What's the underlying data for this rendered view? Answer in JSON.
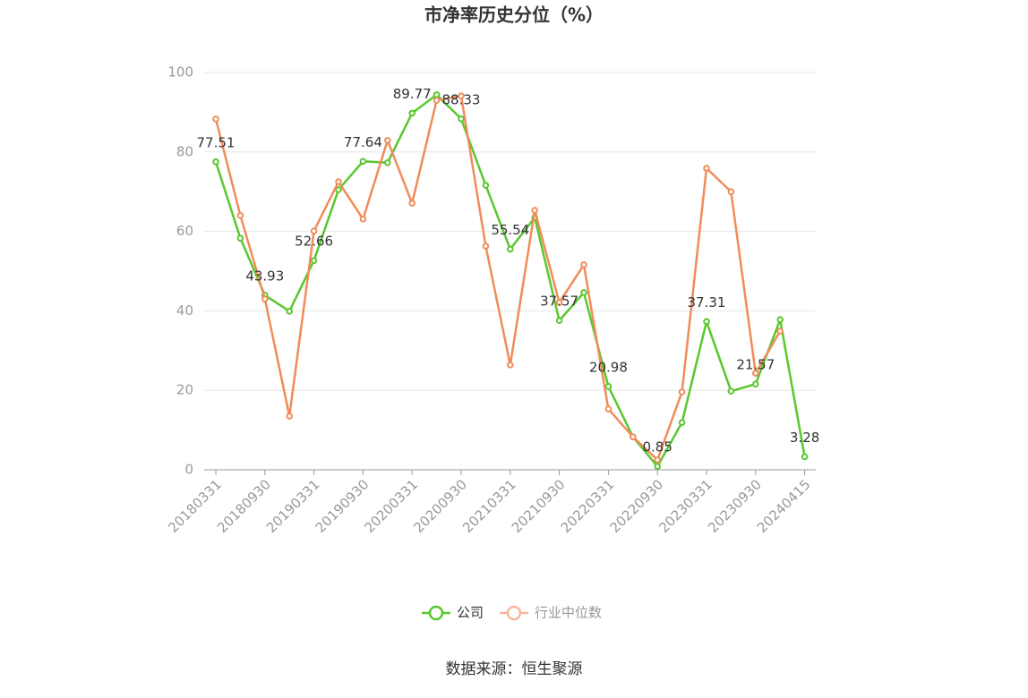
{
  "chart_data": {
    "type": "line",
    "title": "市净率历史分位（%）",
    "categories": [
      "20180331",
      null,
      "20180930",
      null,
      "20190331",
      null,
      "20190930",
      null,
      "20200331",
      null,
      "20200930",
      null,
      "20210331",
      null,
      "20210930",
      null,
      "20220331",
      null,
      "20220930",
      null,
      "20230331",
      null,
      "20230930",
      null,
      "20240415"
    ],
    "series": [
      {
        "name": "公司",
        "color": "#5ac72e",
        "values": [
          77.51,
          58.3,
          43.93,
          39.9,
          52.66,
          70.5,
          77.64,
          77.3,
          89.77,
          94.4,
          88.33,
          71.6,
          55.54,
          63.5,
          37.57,
          44.6,
          20.98,
          8.3,
          0.85,
          11.9,
          37.31,
          19.8,
          21.57,
          37.8,
          3.28
        ]
      },
      {
        "name": "行业中位数",
        "color": "#f08c5a",
        "values": [
          88.3,
          64.0,
          43.0,
          13.5,
          60.1,
          72.5,
          63.1,
          82.9,
          67.1,
          93.0,
          94.1,
          56.3,
          26.4,
          65.3,
          42.1,
          51.6,
          15.3,
          8.3,
          2.5,
          19.6,
          75.9,
          70.0,
          24.3,
          34.9,
          null
        ]
      }
    ],
    "ylim": [
      0,
      100
    ],
    "yticks": [
      0,
      20,
      40,
      60,
      80,
      100
    ],
    "grid": true,
    "source": "数据来源：恒生聚源"
  }
}
